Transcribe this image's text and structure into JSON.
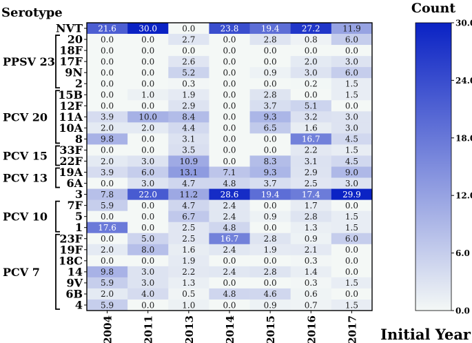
{
  "chart_data": {
    "type": "heatmap",
    "ylabel": "Serotype",
    "xlabel": "Initial Year",
    "colorbar_title": "Count",
    "x": [
      "2004",
      "2011",
      "2013",
      "2014",
      "2015",
      "2016",
      "2017"
    ],
    "y": [
      "NVT",
      "20",
      "18F",
      "17F",
      "9N",
      "2",
      "15B",
      "12F",
      "11A",
      "10A",
      "8",
      "33F",
      "22F",
      "19A",
      "6A",
      "3",
      "7F",
      "5",
      "1",
      "23F",
      "19F",
      "18C",
      "14",
      "9V",
      "6B",
      "4"
    ],
    "values": [
      [
        21.6,
        30.0,
        0.0,
        23.8,
        19.4,
        27.2,
        11.9
      ],
      [
        0.0,
        0.0,
        2.7,
        0.0,
        2.8,
        0.8,
        6.0
      ],
      [
        0.0,
        0.0,
        0.0,
        0.0,
        0.0,
        0.0,
        0.0
      ],
      [
        0.0,
        0.0,
        2.6,
        0.0,
        0.0,
        2.0,
        3.0
      ],
      [
        0.0,
        0.0,
        5.2,
        0.0,
        0.9,
        3.0,
        6.0
      ],
      [
        0.0,
        0.0,
        0.3,
        0.0,
        0.0,
        0.2,
        1.5
      ],
      [
        0.0,
        1.0,
        1.9,
        0.0,
        2.8,
        0.0,
        1.5
      ],
      [
        0.0,
        0.0,
        2.9,
        0.0,
        3.7,
        5.1,
        0.0
      ],
      [
        3.9,
        10.0,
        8.4,
        0.0,
        9.3,
        3.2,
        3.0
      ],
      [
        2.0,
        2.0,
        4.4,
        0.0,
        6.5,
        1.6,
        3.0
      ],
      [
        9.8,
        0.0,
        3.1,
        0.0,
        0.0,
        16.7,
        4.5
      ],
      [
        0.0,
        0.0,
        3.5,
        0.0,
        0.0,
        2.2,
        1.5
      ],
      [
        2.0,
        3.0,
        10.9,
        0.0,
        8.3,
        3.1,
        4.5
      ],
      [
        3.9,
        6.0,
        13.1,
        7.1,
        9.3,
        2.9,
        9.0
      ],
      [
        0.0,
        3.0,
        4.7,
        4.8,
        3.7,
        2.5,
        3.0
      ],
      [
        7.8,
        22.0,
        11.2,
        28.6,
        19.4,
        17.4,
        29.9
      ],
      [
        5.9,
        0.0,
        4.7,
        2.4,
        0.0,
        1.7,
        0.0
      ],
      [
        0.0,
        0.0,
        6.7,
        2.4,
        0.9,
        2.8,
        1.5
      ],
      [
        17.6,
        0.0,
        2.5,
        4.8,
        0.0,
        1.3,
        1.5
      ],
      [
        0.0,
        5.0,
        2.5,
        16.7,
        2.8,
        0.9,
        6.0
      ],
      [
        2.0,
        8.0,
        1.6,
        2.4,
        1.9,
        2.1,
        0.0
      ],
      [
        0.0,
        0.0,
        1.9,
        0.0,
        0.0,
        0.3,
        0.0
      ],
      [
        9.8,
        3.0,
        2.2,
        2.4,
        2.8,
        1.4,
        0.0
      ],
      [
        5.9,
        3.0,
        1.3,
        0.0,
        0.0,
        0.3,
        1.5
      ],
      [
        2.0,
        4.0,
        0.5,
        4.8,
        4.6,
        0.6,
        0.0
      ],
      [
        5.9,
        0.0,
        1.0,
        0.0,
        0.9,
        0.7,
        1.5
      ]
    ],
    "groups": [
      {
        "label": "PPSV 23",
        "from": "20",
        "to": "2"
      },
      {
        "label": "PCV 20",
        "from": "15B",
        "to": "8"
      },
      {
        "label": "PCV 15",
        "from": "33F",
        "to": "22F"
      },
      {
        "label": "PCV 13",
        "from": "19A",
        "to": "6A"
      },
      {
        "label": "PCV 10",
        "from": "7F",
        "to": "1"
      },
      {
        "label": "PCV 7",
        "from": "23F",
        "to": "4"
      }
    ],
    "value_range": [
      0,
      30
    ],
    "colorbar_ticks": [
      "0.0",
      "6.0",
      "12.0",
      "18.0",
      "24.0",
      "30.0"
    ],
    "colors": {
      "low": "#f4f8f6",
      "high": "#0a22c4"
    }
  }
}
